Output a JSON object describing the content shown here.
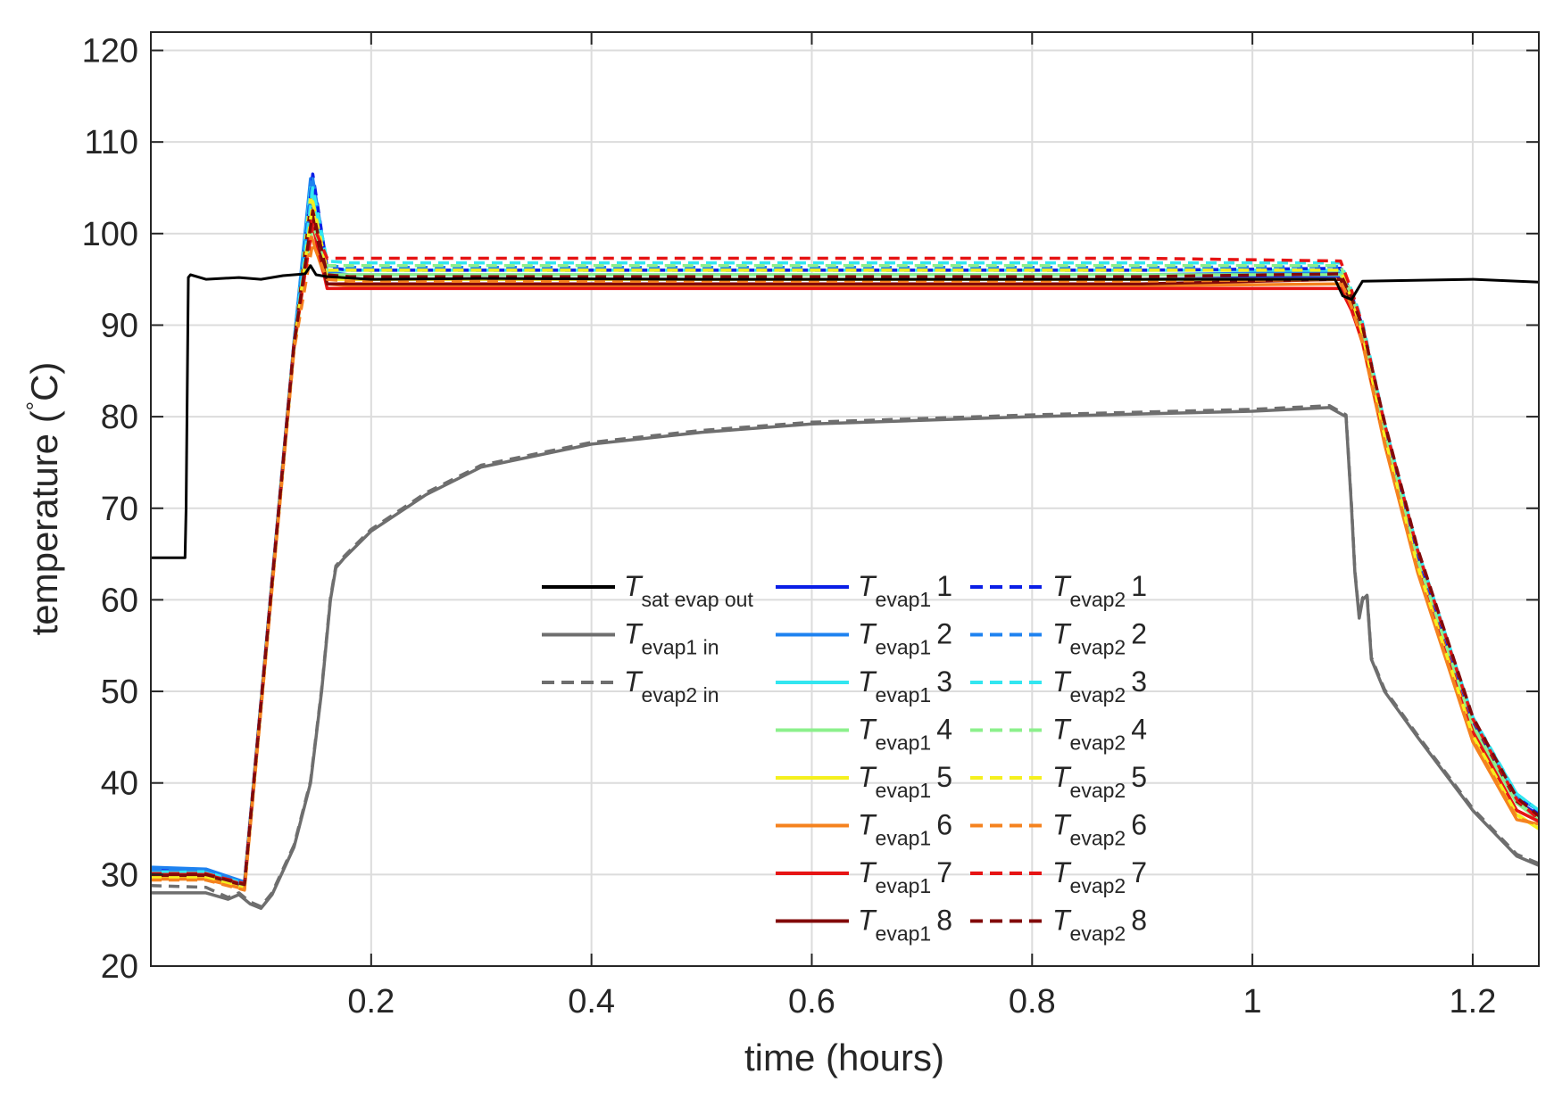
{
  "chart_data": {
    "type": "line",
    "title": "",
    "xlabel": "time (hours)",
    "ylabel": "temperature (",
    "ylabel_unit": "C)",
    "ylabel_degree": "°",
    "xlim": [
      0.0,
      1.26
    ],
    "ylim": [
      20,
      122
    ],
    "xticks": [
      0.2,
      0.4,
      0.6,
      0.8,
      1.0,
      1.2
    ],
    "xtick_labels": [
      "0.2",
      "0.4",
      "0.6",
      "0.8",
      "1",
      "1.2"
    ],
    "yticks": [
      20,
      30,
      40,
      50,
      60,
      70,
      80,
      90,
      100,
      110,
      120
    ],
    "ytick_labels": [
      "20",
      "30",
      "40",
      "50",
      "60",
      "70",
      "80",
      "90",
      "100",
      "110",
      "120"
    ],
    "grid": true,
    "legend_position": "center",
    "series": [
      {
        "name": "T_sat evap out",
        "label_main": "T",
        "label_sub": "sat evap out",
        "label_num": "",
        "color": "#000000",
        "dash": "solid",
        "x": [
          0.0,
          0.031,
          0.032,
          0.034,
          0.036,
          0.05,
          0.08,
          0.1,
          0.12,
          0.14,
          0.145,
          0.15,
          0.16,
          0.2,
          0.3,
          0.5,
          0.7,
          0.9,
          1.0,
          1.075,
          1.082,
          1.09,
          1.1,
          1.2,
          1.26
        ],
        "y": [
          64.6,
          64.6,
          70.0,
          95.2,
          95.5,
          95.0,
          95.2,
          95.0,
          95.4,
          95.6,
          96.5,
          95.5,
          95.3,
          95.0,
          95.1,
          95.0,
          95.0,
          95.0,
          95.0,
          95.0,
          93.2,
          92.8,
          94.8,
          95.0,
          94.7
        ]
      },
      {
        "name": "T_evap1 in",
        "label_main": "T",
        "label_sub": "evap1 in",
        "label_num": "",
        "color": "#6e6e6e",
        "dash": "solid",
        "x": [
          0.0,
          0.05,
          0.07,
          0.08,
          0.09,
          0.1,
          0.11,
          0.13,
          0.145,
          0.155,
          0.163,
          0.168,
          0.175,
          0.2,
          0.25,
          0.3,
          0.4,
          0.5,
          0.6,
          0.8,
          1.0,
          1.07,
          1.085,
          1.09,
          1.093,
          1.097,
          1.1,
          1.104,
          1.108,
          1.12,
          1.15,
          1.2,
          1.24,
          1.26
        ],
        "y": [
          28.0,
          28.0,
          27.3,
          27.8,
          26.8,
          26.3,
          27.8,
          33.0,
          40.0,
          50.0,
          60.0,
          63.5,
          64.5,
          67.5,
          71.5,
          74.5,
          77.0,
          78.3,
          79.2,
          80.0,
          80.6,
          81.0,
          80.0,
          70.0,
          63.0,
          58.0,
          60.0,
          60.5,
          53.5,
          50.0,
          45.0,
          37.0,
          32.0,
          31.0
        ]
      },
      {
        "name": "T_evap2 in",
        "label_main": "T",
        "label_sub": "evap2 in",
        "label_num": "",
        "color": "#6e6e6e",
        "dash": "dashed",
        "x": [
          0.0,
          0.05,
          0.07,
          0.08,
          0.09,
          0.1,
          0.11,
          0.13,
          0.145,
          0.155,
          0.163,
          0.168,
          0.175,
          0.2,
          0.25,
          0.3,
          0.4,
          0.5,
          0.6,
          0.8,
          1.0,
          1.07,
          1.085,
          1.09,
          1.093,
          1.097,
          1.1,
          1.104,
          1.108,
          1.12,
          1.15,
          1.2,
          1.24,
          1.26
        ],
        "y": [
          28.8,
          28.6,
          27.5,
          28.0,
          27.0,
          26.5,
          28.0,
          33.2,
          40.2,
          50.2,
          60.2,
          63.7,
          64.7,
          67.7,
          71.7,
          74.7,
          77.2,
          78.5,
          79.4,
          80.2,
          80.8,
          81.2,
          80.2,
          70.2,
          63.2,
          58.2,
          60.2,
          60.7,
          53.7,
          50.2,
          45.2,
          37.2,
          32.2,
          31.2
        ]
      },
      {
        "name": "T_evap1 1",
        "label_main": "T",
        "label_sub": "evap1",
        "label_num": "1",
        "color": "#0a1ee6",
        "dash": "solid",
        "x": [
          0.0,
          0.05,
          0.085,
          0.11,
          0.13,
          0.145,
          0.16,
          0.18,
          0.3,
          0.6,
          0.9,
          1.08,
          1.09,
          1.1,
          1.12,
          1.15,
          1.2,
          1.24,
          1.26
        ],
        "y": [
          30.5,
          30.5,
          29.0,
          62.0,
          88.0,
          104.0,
          95.3,
          95.0,
          95.0,
          95.0,
          95.0,
          95.3,
          92.5,
          89.0,
          78.0,
          64.0,
          46.0,
          38.0,
          36.5
        ]
      },
      {
        "name": "T_evap1 2",
        "label_main": "T",
        "label_sub": "evap1",
        "label_num": "2",
        "color": "#1e82f0",
        "dash": "solid",
        "x": [
          0.0,
          0.05,
          0.085,
          0.11,
          0.13,
          0.145,
          0.16,
          0.18,
          0.3,
          0.6,
          0.9,
          1.08,
          1.09,
          1.1,
          1.12,
          1.15,
          1.2,
          1.24,
          1.26
        ],
        "y": [
          30.8,
          30.6,
          29.2,
          62.2,
          88.2,
          106.0,
          95.8,
          95.5,
          95.5,
          95.5,
          95.5,
          95.8,
          93.0,
          89.5,
          78.5,
          64.5,
          46.5,
          38.5,
          37.0
        ]
      },
      {
        "name": "T_evap1 3",
        "label_main": "T",
        "label_sub": "evap1",
        "label_num": "3",
        "color": "#32e6f0",
        "dash": "solid",
        "x": [
          0.0,
          0.05,
          0.085,
          0.11,
          0.13,
          0.145,
          0.16,
          0.18,
          0.3,
          0.6,
          0.9,
          1.08,
          1.09,
          1.1,
          1.12,
          1.15,
          1.2,
          1.24,
          1.26
        ],
        "y": [
          30.3,
          30.3,
          29.0,
          62.0,
          88.0,
          105.0,
          96.0,
          96.0,
          96.0,
          96.0,
          96.0,
          96.0,
          93.2,
          89.8,
          78.8,
          65.0,
          47.0,
          38.8,
          37.0
        ]
      },
      {
        "name": "T_evap1 4",
        "label_main": "T",
        "label_sub": "evap1",
        "label_num": "4",
        "color": "#8cf08c",
        "dash": "solid",
        "x": [
          0.0,
          0.05,
          0.085,
          0.11,
          0.13,
          0.145,
          0.16,
          0.18,
          0.3,
          0.6,
          0.9,
          1.08,
          1.09,
          1.1,
          1.12,
          1.15,
          1.2,
          1.24,
          1.26
        ],
        "y": [
          30.0,
          30.0,
          28.8,
          61.8,
          87.8,
          102.0,
          95.5,
          95.5,
          95.5,
          95.5,
          95.5,
          95.5,
          92.8,
          89.2,
          78.2,
          64.2,
          46.2,
          37.8,
          36.0
        ]
      },
      {
        "name": "T_evap1 5",
        "label_main": "T",
        "label_sub": "evap1",
        "label_num": "5",
        "color": "#f5f01e",
        "dash": "solid",
        "x": [
          0.0,
          0.05,
          0.085,
          0.11,
          0.13,
          0.145,
          0.16,
          0.18,
          0.3,
          0.6,
          0.9,
          1.08,
          1.09,
          1.1,
          1.12,
          1.15,
          1.2,
          1.24,
          1.26
        ],
        "y": [
          29.8,
          29.8,
          28.6,
          61.6,
          87.6,
          104.0,
          95.0,
          95.0,
          95.0,
          95.0,
          95.0,
          95.0,
          92.3,
          88.6,
          77.5,
          63.5,
          45.0,
          36.5,
          35.0
        ]
      },
      {
        "name": "T_evap1 6",
        "label_main": "T",
        "label_sub": "evap1",
        "label_num": "6",
        "color": "#f5821e",
        "dash": "solid",
        "x": [
          0.0,
          0.05,
          0.085,
          0.11,
          0.13,
          0.145,
          0.16,
          0.18,
          0.3,
          0.6,
          0.9,
          1.08,
          1.09,
          1.1,
          1.12,
          1.15,
          1.2,
          1.24,
          1.26
        ],
        "y": [
          29.5,
          29.5,
          28.4,
          61.4,
          87.4,
          100.0,
          94.5,
          94.3,
          94.3,
          94.3,
          94.3,
          94.5,
          91.8,
          88.0,
          77.0,
          63.0,
          44.5,
          36.0,
          35.5
        ]
      },
      {
        "name": "T_evap1 7",
        "label_main": "T",
        "label_sub": "evap1",
        "label_num": "7",
        "color": "#e61414",
        "dash": "solid",
        "x": [
          0.0,
          0.05,
          0.085,
          0.11,
          0.13,
          0.145,
          0.16,
          0.18,
          0.3,
          0.6,
          0.9,
          1.08,
          1.09,
          1.1,
          1.12,
          1.15,
          1.2,
          1.24,
          1.26
        ],
        "y": [
          30.0,
          30.0,
          28.9,
          61.9,
          87.9,
          102.0,
          94.0,
          94.0,
          94.0,
          94.0,
          94.0,
          94.0,
          91.6,
          88.2,
          77.6,
          63.8,
          45.6,
          37.0,
          35.8
        ]
      },
      {
        "name": "T_evap1 8",
        "label_main": "T",
        "label_sub": "evap1",
        "label_num": "8",
        "color": "#820a0a",
        "dash": "solid",
        "x": [
          0.0,
          0.05,
          0.085,
          0.11,
          0.13,
          0.145,
          0.16,
          0.18,
          0.3,
          0.6,
          0.9,
          1.08,
          1.09,
          1.1,
          1.12,
          1.15,
          1.2,
          1.24,
          1.26
        ],
        "y": [
          29.9,
          29.9,
          28.8,
          61.8,
          87.8,
          103.0,
          94.5,
          94.5,
          94.5,
          94.5,
          94.5,
          95.0,
          92.5,
          89.4,
          79.0,
          65.2,
          46.8,
          38.0,
          36.2
        ]
      },
      {
        "name": "T_evap2 1",
        "label_main": "T",
        "label_sub": "evap2",
        "label_num": "1",
        "color": "#0a1ee6",
        "dash": "dashed",
        "x": [
          0.0,
          0.05,
          0.085,
          0.11,
          0.13,
          0.147,
          0.16,
          0.18,
          0.3,
          0.6,
          0.9,
          1.08,
          1.09,
          1.1,
          1.12,
          1.15,
          1.2,
          1.24,
          1.26
        ],
        "y": [
          30.3,
          30.3,
          28.9,
          61.9,
          87.9,
          106.5,
          96.3,
          96.0,
          96.0,
          96.0,
          96.0,
          96.2,
          93.3,
          89.9,
          78.9,
          65.0,
          46.8,
          38.4,
          36.8
        ]
      },
      {
        "name": "T_evap2 2",
        "label_main": "T",
        "label_sub": "evap2",
        "label_num": "2",
        "color": "#1e82f0",
        "dash": "dashed",
        "x": [
          0.0,
          0.05,
          0.085,
          0.11,
          0.13,
          0.147,
          0.16,
          0.18,
          0.3,
          0.6,
          0.9,
          1.08,
          1.09,
          1.1,
          1.12,
          1.15,
          1.2,
          1.24,
          1.26
        ],
        "y": [
          30.5,
          30.5,
          29.1,
          62.1,
          88.1,
          106.0,
          96.5,
          96.3,
          96.3,
          96.3,
          96.3,
          96.4,
          93.5,
          90.0,
          79.0,
          65.2,
          47.0,
          38.6,
          37.0
        ]
      },
      {
        "name": "T_evap2 3",
        "label_main": "T",
        "label_sub": "evap2",
        "label_num": "3",
        "color": "#32e6f0",
        "dash": "dashed",
        "x": [
          0.0,
          0.05,
          0.085,
          0.11,
          0.13,
          0.147,
          0.16,
          0.18,
          0.3,
          0.6,
          0.9,
          1.08,
          1.09,
          1.1,
          1.12,
          1.15,
          1.2,
          1.24,
          1.26
        ],
        "y": [
          30.2,
          30.2,
          28.9,
          61.9,
          87.9,
          105.0,
          97.0,
          96.8,
          96.8,
          96.8,
          96.8,
          96.8,
          93.8,
          90.3,
          79.3,
          65.5,
          47.2,
          38.8,
          37.0
        ]
      },
      {
        "name": "T_evap2 4",
        "label_main": "T",
        "label_sub": "evap2",
        "label_num": "4",
        "color": "#8cf08c",
        "dash": "dashed",
        "x": [
          0.0,
          0.05,
          0.085,
          0.11,
          0.13,
          0.147,
          0.16,
          0.18,
          0.3,
          0.6,
          0.9,
          1.08,
          1.09,
          1.1,
          1.12,
          1.15,
          1.2,
          1.24,
          1.26
        ],
        "y": [
          29.9,
          29.9,
          28.7,
          61.7,
          87.7,
          101.0,
          96.5,
          96.5,
          96.5,
          96.5,
          96.5,
          96.5,
          93.3,
          89.5,
          78.4,
          64.4,
          46.3,
          37.9,
          36.2
        ]
      },
      {
        "name": "T_evap2 5",
        "label_main": "T",
        "label_sub": "evap2",
        "label_num": "5",
        "color": "#f5f01e",
        "dash": "dashed",
        "x": [
          0.0,
          0.05,
          0.085,
          0.11,
          0.13,
          0.147,
          0.16,
          0.18,
          0.3,
          0.6,
          0.9,
          1.08,
          1.09,
          1.1,
          1.12,
          1.15,
          1.2,
          1.24,
          1.26
        ],
        "y": [
          29.7,
          29.7,
          28.5,
          61.5,
          87.5,
          103.5,
          96.0,
          96.0,
          96.0,
          96.0,
          96.0,
          96.0,
          92.9,
          89.0,
          77.8,
          63.7,
          45.2,
          36.6,
          35.0
        ]
      },
      {
        "name": "T_evap2 6",
        "label_main": "T",
        "label_sub": "evap2",
        "label_num": "6",
        "color": "#f5821e",
        "dash": "dashed",
        "x": [
          0.0,
          0.05,
          0.085,
          0.11,
          0.13,
          0.147,
          0.16,
          0.18,
          0.3,
          0.6,
          0.9,
          1.08,
          1.09,
          1.1,
          1.12,
          1.15,
          1.2,
          1.24,
          1.26
        ],
        "y": [
          29.4,
          29.4,
          28.3,
          61.3,
          87.3,
          99.0,
          95.0,
          94.8,
          94.8,
          94.8,
          94.8,
          95.0,
          92.0,
          88.2,
          77.2,
          63.2,
          44.7,
          36.2,
          35.4
        ]
      },
      {
        "name": "T_evap2 7",
        "label_main": "T",
        "label_sub": "evap2",
        "label_num": "7",
        "color": "#e61414",
        "dash": "dashed",
        "x": [
          0.0,
          0.05,
          0.085,
          0.11,
          0.13,
          0.147,
          0.16,
          0.18,
          0.3,
          0.6,
          0.9,
          1.08,
          1.09,
          1.1,
          1.12,
          1.15,
          1.2,
          1.24,
          1.26
        ],
        "y": [
          30.1,
          30.1,
          29.0,
          62.0,
          88.0,
          101.0,
          97.3,
          97.3,
          97.3,
          97.3,
          97.3,
          97.0,
          93.8,
          90.0,
          79.2,
          65.4,
          47.0,
          38.2,
          36.0
        ]
      },
      {
        "name": "T_evap2 8",
        "label_main": "T",
        "label_sub": "evap2",
        "label_num": "8",
        "color": "#820a0a",
        "dash": "dashed",
        "x": [
          0.0,
          0.05,
          0.085,
          0.11,
          0.13,
          0.147,
          0.16,
          0.18,
          0.3,
          0.6,
          0.9,
          1.08,
          1.09,
          1.1,
          1.12,
          1.15,
          1.2,
          1.24,
          1.26
        ],
        "y": [
          30.0,
          30.0,
          28.9,
          61.9,
          87.9,
          102.5,
          95.5,
          95.3,
          95.3,
          95.3,
          95.3,
          95.6,
          93.0,
          89.8,
          79.4,
          65.6,
          47.2,
          38.4,
          36.4
        ]
      }
    ]
  }
}
